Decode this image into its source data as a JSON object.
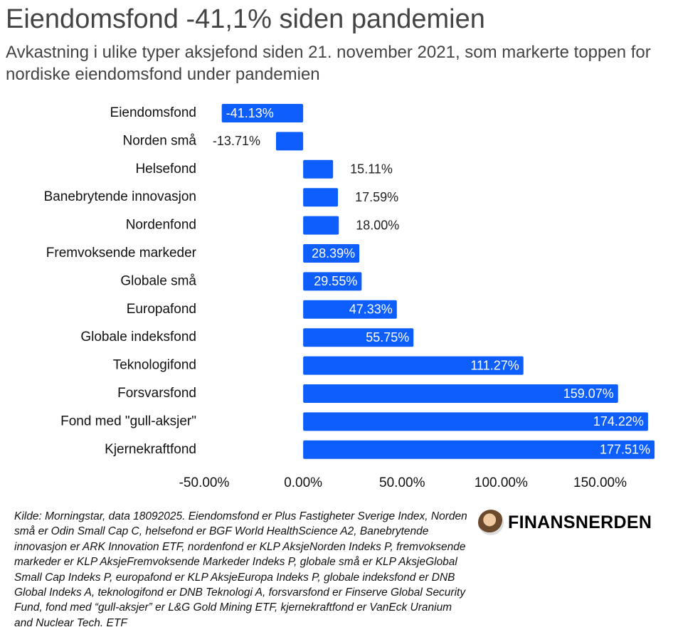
{
  "chart_data": {
    "type": "barh",
    "title": "Eiendomsfond -41,1% siden pandemien",
    "subtitle": "Avkastning i ulike typer aksjefond siden 21. november 2021, som markerte toppen for nordiske eiendomsfond under pandemien",
    "categories": [
      "Eiendomsfond",
      "Norden små",
      "Helsefond",
      "Banebrytende innovasjon",
      "Nordenfond",
      "Fremvoksende markeder",
      "Globale små",
      "Europafond",
      "Globale indeksfond",
      "Teknologifond",
      "Forsvarsfond",
      "Fond med \"gull-aksjer\"",
      "Kjernekraftfond"
    ],
    "values": [
      -41.13,
      -13.71,
      15.11,
      17.59,
      18.0,
      28.39,
      29.55,
      47.33,
      55.75,
      111.27,
      159.07,
      174.22,
      177.51
    ],
    "value_labels": [
      "-41.13%",
      "-13.71%",
      "15.11%",
      "17.59%",
      "18.00%",
      "28.39%",
      "29.55%",
      "47.33%",
      "55.75%",
      "111.27%",
      "159.07%",
      "174.22%",
      "177.51%"
    ],
    "color": "#0d5efc",
    "xlim": [
      -50,
      180
    ],
    "xticks": [
      {
        "value": -50,
        "label": "-50.00%"
      },
      {
        "value": 0,
        "label": "0.00%"
      },
      {
        "value": 50,
        "label": "50.00%"
      },
      {
        "value": 100,
        "label": "100.00%"
      },
      {
        "value": 150,
        "label": "150.00%"
      }
    ],
    "source": "Kilde: Morningstar, data 18092025. Eiendomsfond er Plus Fastigheter Sverige Index, Norden små er Odin Small Cap C, helsefond er BGF World HealthScience A2, Banebrytende innovasjon er ARK Innovation ETF, nordenfond er KLP AksjeNorden Indeks P, fremvoksende markeder er KLP AksjeFremvoksende Markeder Indeks P, globale små er KLP AksjeGlobal Small Cap Indeks P, europafond er KLP AksjeEuropa Indeks P, globale indeksfond er DNB Global Indeks A, teknologifond er DNB Teknologi A, forsvarsfond er Finserve Global Security Fund, fond med “gull-aksjer” er L&G Gold Mining ETF, kjernekraftfond er VanEck Uranium and Nuclear Tech. ETF",
    "brand": "FINANSNERDEN"
  }
}
